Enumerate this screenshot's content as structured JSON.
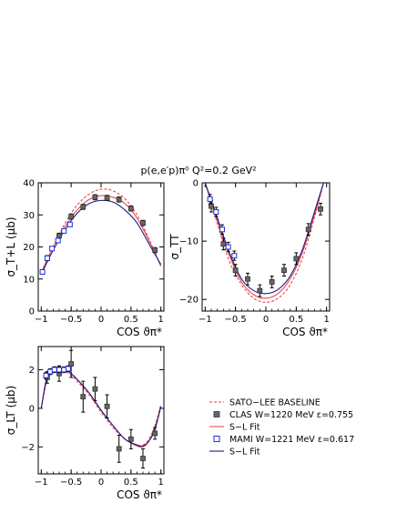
{
  "figure_title": "p(e,e′p)π⁰  Q²=0.2 GeV²",
  "colors": {
    "sato_lee": "#e8383d",
    "clas_fit": "#e8383d",
    "mami_fit": "#1a1a8c",
    "mami_marker": "#1f2fd6",
    "clas_marker": "#666666",
    "axis": "#000000"
  },
  "legend": {
    "entries": [
      {
        "id": "sato",
        "label": "SATO−LEE BASELINE",
        "style": "dashed-red"
      },
      {
        "id": "clas",
        "label": "CLAS W=1220 MeV ε=0.755",
        "style": "filled-gray-square"
      },
      {
        "id": "clasfit",
        "label": "S−L Fit",
        "style": "solid-red"
      },
      {
        "id": "mami",
        "label": "MAMI W=1221 MeV ε=0.617",
        "style": "open-blue-square"
      },
      {
        "id": "mamifit",
        "label": "S−L Fit",
        "style": "solid-navy"
      }
    ]
  },
  "chart_data": [
    {
      "id": "tl",
      "type": "scatter",
      "ylabel": "σ_T+L (μb)",
      "xlabel": "COS ϑπ*",
      "xlim": [
        -1.05,
        1.05
      ],
      "ylim": [
        0,
        40
      ],
      "xticks": [
        -1,
        -0.5,
        0,
        0.5,
        1
      ],
      "xtick_labels": [
        "−1",
        "−0.5",
        "0",
        "0.5",
        "1"
      ],
      "yticks": [
        0,
        10,
        20,
        30,
        40
      ],
      "ytick_labels": [
        "0",
        "10",
        "20",
        "30",
        "40"
      ],
      "series": [
        {
          "id": "clas",
          "x": [
            -0.9,
            -0.7,
            -0.5,
            -0.3,
            -0.1,
            0.1,
            0.3,
            0.5,
            0.7,
            0.9
          ],
          "y": [
            16.5,
            23.5,
            29.5,
            32.5,
            35.5,
            35.3,
            34.8,
            32.0,
            27.5,
            19.0
          ],
          "err": [
            0.8,
            0.8,
            0.8,
            0.8,
            0.8,
            0.8,
            0.8,
            0.8,
            0.8,
            0.8
          ]
        },
        {
          "id": "mami",
          "x": [
            -0.98,
            -0.9,
            -0.82,
            -0.72,
            -0.62,
            -0.52
          ],
          "y": [
            12.2,
            16.5,
            19.5,
            22.0,
            25.0,
            27.0
          ],
          "err": [
            0.5,
            0.5,
            0.5,
            0.5,
            0.5,
            0.5
          ]
        },
        {
          "id": "sato",
          "x": [
            -1,
            -0.8,
            -0.6,
            -0.4,
            -0.2,
            0,
            0.2,
            0.4,
            0.6,
            0.8,
            1
          ],
          "y": [
            12.0,
            20.0,
            27.5,
            33.0,
            36.5,
            38.0,
            37.5,
            35.0,
            30.0,
            22.5,
            14.0
          ]
        },
        {
          "id": "clasfit",
          "x": [
            -1,
            -0.8,
            -0.6,
            -0.4,
            -0.2,
            0,
            0.2,
            0.4,
            0.6,
            0.8,
            1
          ],
          "y": [
            12.0,
            20.0,
            26.5,
            31.5,
            34.8,
            36.0,
            35.5,
            33.5,
            29.0,
            22.0,
            14.0
          ]
        },
        {
          "id": "mamifit",
          "x": [
            -1,
            -0.8,
            -0.6,
            -0.4,
            -0.2,
            0,
            0.2,
            0.4,
            0.6,
            0.8,
            1
          ],
          "y": [
            11.5,
            19.0,
            25.5,
            30.5,
            33.5,
            34.5,
            34.0,
            31.5,
            27.5,
            21.0,
            14.5
          ]
        }
      ]
    },
    {
      "id": "tt",
      "type": "scatter",
      "ylabel": "σ_TT",
      "xlabel": "COS ϑπ*",
      "xlim": [
        -1.05,
        1.05
      ],
      "ylim": [
        -22,
        0
      ],
      "xticks": [
        -1,
        -0.5,
        0,
        0.5,
        1
      ],
      "xtick_labels": [
        "−1",
        "−0.5",
        "0",
        "0.5",
        "1"
      ],
      "yticks": [
        0,
        -10,
        -20
      ],
      "ytick_labels": [
        "0",
        "−10",
        "−20"
      ],
      "series": [
        {
          "id": "clas",
          "x": [
            -0.9,
            -0.7,
            -0.5,
            -0.3,
            -0.1,
            0.1,
            0.3,
            0.5,
            0.7,
            0.9
          ],
          "y": [
            -4.0,
            -10.5,
            -15.0,
            -16.5,
            -18.5,
            -17.0,
            -15.0,
            -13.0,
            -8.0,
            -4.5
          ],
          "err": [
            1.0,
            1.0,
            1.0,
            1.0,
            1.0,
            1.0,
            1.0,
            1.0,
            1.0,
            1.0
          ]
        },
        {
          "id": "mami",
          "x": [
            -0.92,
            -0.82,
            -0.72,
            -0.62,
            -0.52
          ],
          "y": [
            -2.8,
            -5.0,
            -8.0,
            -11.0,
            -12.5
          ],
          "err": [
            0.8,
            0.8,
            0.8,
            0.8,
            0.8
          ]
        },
        {
          "id": "sato",
          "x": [
            -1,
            -0.8,
            -0.6,
            -0.4,
            -0.2,
            0,
            0.2,
            0.4,
            0.6,
            0.8,
            0.95
          ],
          "y": [
            0.0,
            -7.0,
            -13.5,
            -17.5,
            -19.8,
            -20.5,
            -19.8,
            -17.5,
            -13.0,
            -6.0,
            0.0
          ]
        },
        {
          "id": "clasfit",
          "x": [
            -1,
            -0.8,
            -0.6,
            -0.4,
            -0.2,
            0,
            0.2,
            0.4,
            0.6,
            0.8,
            0.95
          ],
          "y": [
            0.0,
            -6.5,
            -12.5,
            -17.0,
            -19.2,
            -19.8,
            -19.0,
            -16.5,
            -12.0,
            -5.5,
            0.0
          ]
        },
        {
          "id": "mamifit",
          "x": [
            -1,
            -0.8,
            -0.6,
            -0.4,
            -0.2,
            0,
            0.2,
            0.4,
            0.6,
            0.8,
            0.95
          ],
          "y": [
            0.0,
            -6.0,
            -12.0,
            -16.5,
            -18.5,
            -19.0,
            -18.3,
            -16.0,
            -11.5,
            -5.0,
            0.0
          ]
        }
      ]
    },
    {
      "id": "lt",
      "type": "scatter",
      "ylabel": "σ_LT (μb)",
      "xlabel": "COS ϑπ*",
      "xlim": [
        -1.05,
        1.05
      ],
      "ylim": [
        -3.4,
        3.2
      ],
      "xticks": [
        -1,
        -0.5,
        0,
        0.5,
        1
      ],
      "xtick_labels": [
        "−1",
        "−0.5",
        "0",
        "0.5",
        "1"
      ],
      "yticks": [
        2,
        0,
        -2
      ],
      "ytick_labels": [
        "2",
        "0",
        "−2"
      ],
      "series": [
        {
          "id": "clas",
          "x": [
            -0.9,
            -0.7,
            -0.5,
            -0.3,
            -0.1,
            0.1,
            0.3,
            0.5,
            0.7,
            0.9
          ],
          "y": [
            1.6,
            1.8,
            2.3,
            0.6,
            1.0,
            0.1,
            -2.1,
            -1.6,
            -2.6,
            -1.3
          ],
          "err": [
            0.3,
            0.4,
            0.7,
            0.8,
            0.6,
            0.6,
            0.7,
            0.5,
            0.5,
            0.3
          ]
        },
        {
          "id": "mami",
          "x": [
            -0.92,
            -0.85,
            -0.78,
            -0.7,
            -0.62,
            -0.55
          ],
          "y": [
            1.7,
            1.9,
            2.0,
            2.0,
            2.0,
            2.05
          ],
          "err": [
            0.15,
            0.15,
            0.15,
            0.15,
            0.15,
            0.15
          ]
        },
        {
          "id": "sato",
          "x": [
            -1,
            -0.9,
            -0.8,
            -0.7,
            -0.6,
            -0.5,
            -0.4,
            -0.2,
            0,
            0.2,
            0.4,
            0.6,
            0.7,
            0.8,
            0.9,
            1.0
          ],
          "y": [
            0.0,
            1.5,
            2.0,
            2.0,
            1.9,
            1.7,
            1.4,
            0.7,
            -0.2,
            -1.0,
            -1.6,
            -1.9,
            -1.9,
            -1.6,
            -0.9,
            0.2
          ]
        },
        {
          "id": "clasfit",
          "x": [
            -1,
            -0.9,
            -0.8,
            -0.7,
            -0.6,
            -0.5,
            -0.4,
            -0.2,
            0,
            0.2,
            0.4,
            0.6,
            0.7,
            0.8,
            0.9,
            1.0
          ],
          "y": [
            0.0,
            1.6,
            2.1,
            2.1,
            2.0,
            1.8,
            1.5,
            0.8,
            -0.1,
            -0.9,
            -1.6,
            -1.95,
            -2.0,
            -1.7,
            -1.0,
            0.1
          ]
        },
        {
          "id": "mamifit",
          "x": [
            -1,
            -0.9,
            -0.8,
            -0.7,
            -0.6,
            -0.5,
            -0.4,
            -0.2,
            0,
            0.2,
            0.4,
            0.6,
            0.7,
            0.8,
            0.9,
            1.0
          ],
          "y": [
            0.0,
            1.7,
            2.1,
            2.1,
            2.0,
            1.8,
            1.5,
            0.8,
            -0.1,
            -0.9,
            -1.6,
            -1.9,
            -1.95,
            -1.7,
            -1.1,
            0.1
          ]
        }
      ]
    }
  ]
}
